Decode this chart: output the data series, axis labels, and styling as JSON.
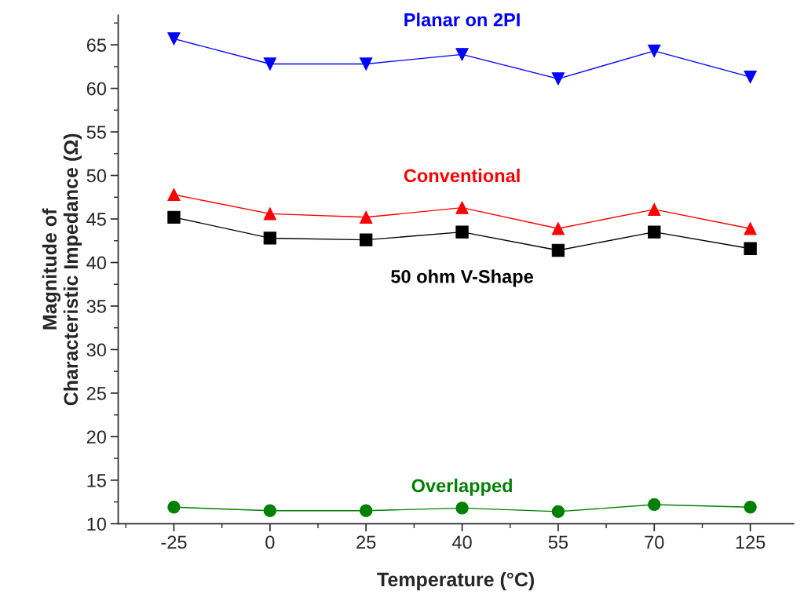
{
  "chart_data": {
    "type": "line",
    "xlabel": "Temperature (°C)",
    "ylabel": "Magnitude of\nCharacteristic Impedance (Ω)",
    "categories": [
      "-25",
      "0",
      "25",
      "40",
      "55",
      "70",
      "125"
    ],
    "series": [
      {
        "name": "Planar on 2PI",
        "color": "#0000ff",
        "marker": "triangle_down",
        "values": [
          65.7,
          62.8,
          62.8,
          63.9,
          61.1,
          64.3,
          61.3
        ]
      },
      {
        "name": "Conventional",
        "color": "#ff0000",
        "marker": "triangle",
        "values": [
          47.8,
          45.6,
          45.2,
          46.3,
          43.9,
          46.1,
          43.9
        ]
      },
      {
        "name": "50 ohm V-Shape",
        "color": "#000000",
        "marker": "square",
        "values": [
          45.2,
          42.8,
          42.6,
          43.5,
          41.4,
          43.5,
          41.6
        ]
      },
      {
        "name": "Overlapped",
        "color": "#008000",
        "marker": "circle",
        "values": [
          11.9,
          11.5,
          11.5,
          11.8,
          11.4,
          12.2,
          11.9
        ]
      }
    ],
    "ylim": [
      10,
      68.4
    ],
    "yticks": [
      10,
      15,
      20,
      25,
      30,
      35,
      40,
      45,
      50,
      55,
      60,
      65
    ],
    "grid": false,
    "legend": false
  }
}
